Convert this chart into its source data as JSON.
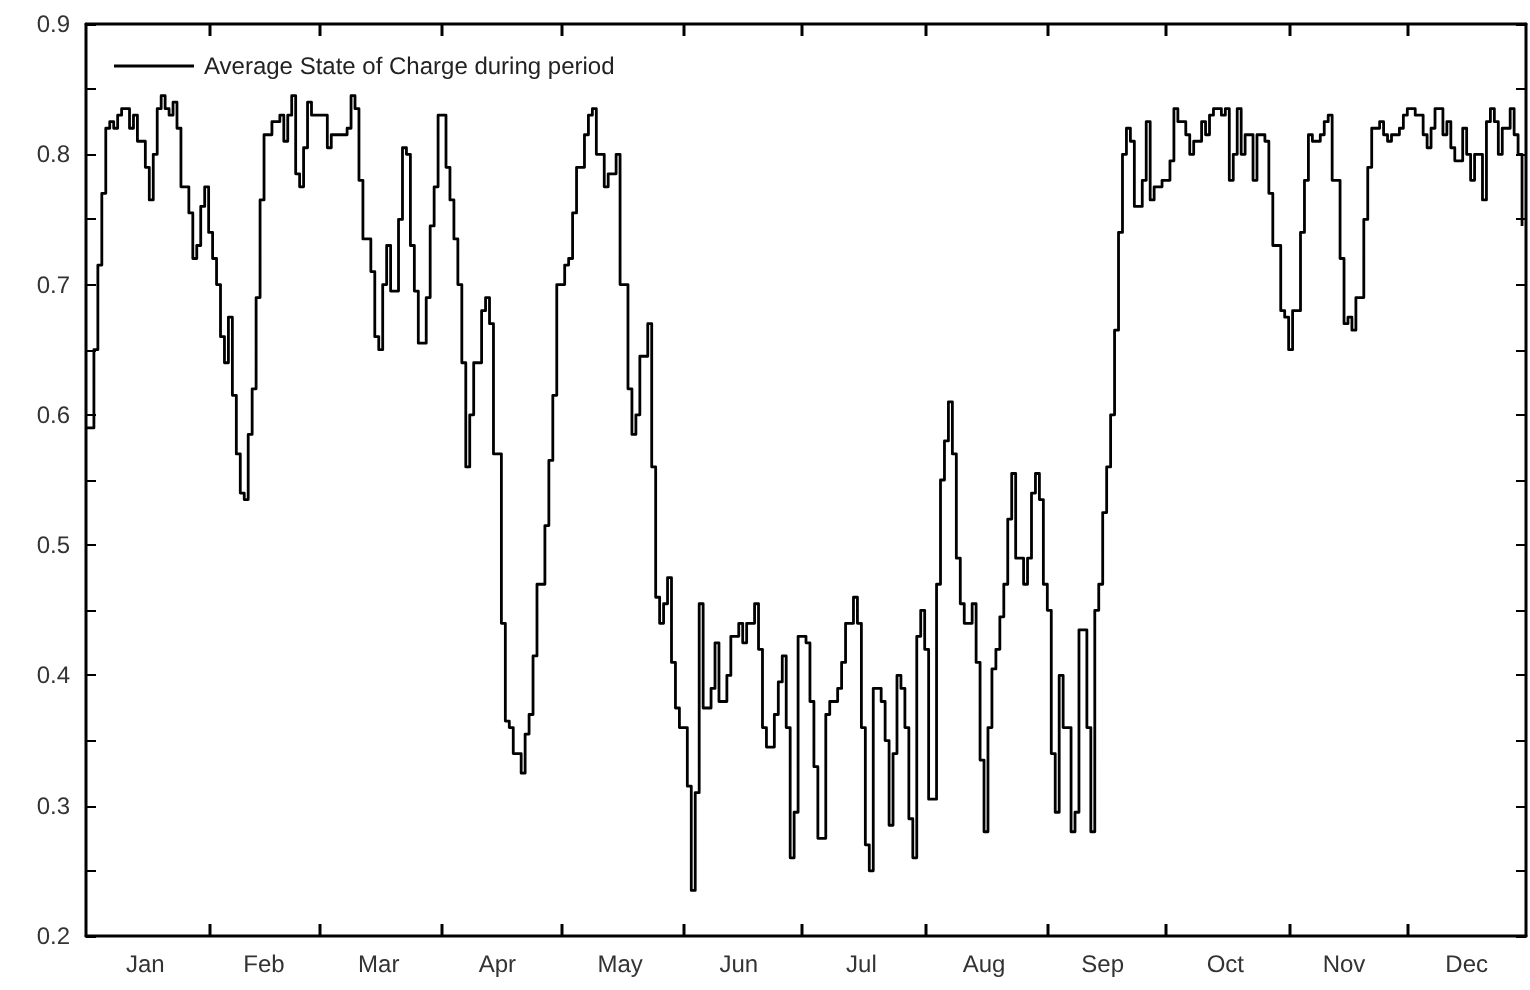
{
  "chart_data": {
    "type": "step",
    "legend": "top left",
    "marker": "none",
    "grid": false,
    "xlim": [
      "--01-01",
      "--12-31"
    ],
    "ylim": [
      0.2,
      0.9
    ],
    "xticks": [
      {
        "value": "--01-16",
        "label": "Jan"
      },
      {
        "value": "--02-01",
        "label": null
      },
      {
        "value": "--02-15",
        "label": "Feb"
      },
      {
        "value": "--03-01",
        "label": null
      },
      {
        "value": "--03-16",
        "label": "Mar"
      },
      {
        "value": "--04-01",
        "label": null
      },
      {
        "value": "--04-15",
        "label": "Apr"
      },
      {
        "value": "--05-01",
        "label": null
      },
      {
        "value": "--05-16",
        "label": "May"
      },
      {
        "value": "--06-01",
        "label": null
      },
      {
        "value": "--06-15",
        "label": "Jun"
      },
      {
        "value": "--07-01",
        "label": null
      },
      {
        "value": "--07-16",
        "label": "Jul"
      },
      {
        "value": "--08-01",
        "label": null
      },
      {
        "value": "--08-16",
        "label": "Aug"
      },
      {
        "value": "--09-01",
        "label": null
      },
      {
        "value": "--09-15",
        "label": "Sep"
      },
      {
        "value": "--10-01",
        "label": null
      },
      {
        "value": "--10-16",
        "label": "Oct"
      },
      {
        "value": "--11-01",
        "label": null
      },
      {
        "value": "--11-15",
        "label": "Nov"
      },
      {
        "value": "--12-01",
        "label": null
      },
      {
        "value": "--12-16",
        "label": "Dec"
      }
    ],
    "yticks": [
      0.2,
      {
        "value": 0.25,
        "label": null
      },
      0.3,
      {
        "value": 0.35,
        "label": null
      },
      0.4,
      {
        "value": 0.45,
        "label": null
      },
      0.5,
      {
        "value": 0.55,
        "label": null
      },
      0.6,
      {
        "value": 0.65,
        "label": null
      },
      0.7,
      {
        "value": 0.75,
        "label": null
      },
      0.8,
      {
        "value": 0.85,
        "label": null
      },
      0.9
    ],
    "series": [
      {
        "name": "Average State of Charge during period",
        "color": "#000000",
        "x": [
          "--01-01",
          "--01-03",
          "--01-04",
          "--01-05",
          "--01-06",
          "--01-07",
          "--01-08",
          "--01-09",
          "--01-10",
          "--01-12",
          "--01-13",
          "--01-14",
          "--01-15",
          "--01-16",
          "--01-17",
          "--01-18",
          "--01-19",
          "--01-20",
          "--01-21",
          "--01-22",
          "--01-23",
          "--01-24",
          "--01-25",
          "--01-27",
          "--01-28",
          "--01-29",
          "--01-30",
          "--01-31",
          "--02-01",
          "--02-02",
          "--02-03",
          "--02-04",
          "--02-05",
          "--02-06",
          "--02-07",
          "--02-08",
          "--02-09",
          "--02-10",
          "--02-11",
          "--02-12",
          "--02-13",
          "--02-14",
          "--02-15",
          "--02-17",
          "--02-19",
          "--02-20",
          "--02-21",
          "--02-22",
          "--02-23",
          "--02-24",
          "--02-25",
          "--02-26",
          "--02-27",
          "--03-03",
          "--03-04",
          "--03-08",
          "--03-09",
          "--03-10",
          "--03-11",
          "--03-12",
          "--03-14",
          "--03-15",
          "--03-16",
          "--03-17",
          "--03-18",
          "--03-19",
          "--03-21",
          "--03-22",
          "--03-23",
          "--03-24",
          "--03-25",
          "--03-26",
          "--03-28",
          "--03-29",
          "--03-30",
          "--03-31",
          "--04-02",
          "--04-03",
          "--04-04",
          "--04-05",
          "--04-06",
          "--04-07",
          "--04-08",
          "--04-09",
          "--04-10",
          "--04-11",
          "--04-12",
          "--04-13",
          "--04-14",
          "--04-16",
          "--04-17",
          "--04-18",
          "--04-19",
          "--04-21",
          "--04-22",
          "--04-23",
          "--04-24",
          "--04-25",
          "--04-27",
          "--04-28",
          "--04-29",
          "--04-30",
          "--05-02",
          "--05-03",
          "--05-04",
          "--05-05",
          "--05-07",
          "--05-08",
          "--05-09",
          "--05-10",
          "--05-12",
          "--05-13",
          "--05-15",
          "--05-16",
          "--05-18",
          "--05-19",
          "--05-20",
          "--05-21",
          "--05-23",
          "--05-24",
          "--05-25",
          "--05-26",
          "--05-27",
          "--05-28",
          "--05-29",
          "--05-30",
          "--05-31",
          "--06-02",
          "--06-03",
          "--06-04",
          "--06-05",
          "--06-06",
          "--06-08",
          "--06-09",
          "--06-10",
          "--06-12",
          "--06-13",
          "--06-15",
          "--06-16",
          "--06-17",
          "--06-19",
          "--06-20",
          "--06-21",
          "--06-22",
          "--06-24",
          "--06-25",
          "--06-26",
          "--06-27",
          "--06-28",
          "--06-29",
          "--06-30",
          "--07-02",
          "--07-03",
          "--07-04",
          "--07-05",
          "--07-07",
          "--07-08",
          "--07-10",
          "--07-11",
          "--07-12",
          "--07-14",
          "--07-15",
          "--07-16",
          "--07-17",
          "--07-18",
          "--07-19",
          "--07-21",
          "--07-22",
          "--07-23",
          "--07-24",
          "--07-25",
          "--07-26",
          "--07-27",
          "--07-28",
          "--07-29",
          "--07-30",
          "--07-31",
          "--08-01",
          "--08-02",
          "--08-04",
          "--08-05",
          "--08-06",
          "--08-07",
          "--08-08",
          "--08-09",
          "--08-10",
          "--08-11",
          "--08-13",
          "--08-14",
          "--08-15",
          "--08-16",
          "--08-17",
          "--08-18",
          "--08-19",
          "--08-20",
          "--08-21",
          "--08-22",
          "--08-23",
          "--08-24",
          "--08-26",
          "--08-27",
          "--08-28",
          "--08-29",
          "--08-30",
          "--08-31",
          "--09-01",
          "--09-02",
          "--09-03",
          "--09-04",
          "--09-05",
          "--09-07",
          "--09-08",
          "--09-09",
          "--09-11",
          "--09-12",
          "--09-13",
          "--09-14",
          "--09-15",
          "--09-16",
          "--09-17",
          "--09-18",
          "--09-19",
          "--09-20",
          "--09-21",
          "--09-22",
          "--09-23",
          "--09-25",
          "--09-26",
          "--09-27",
          "--09-28",
          "--09-30",
          "--10-02",
          "--10-03",
          "--10-04",
          "--10-06",
          "--10-07",
          "--10-08",
          "--10-10",
          "--10-11",
          "--10-12",
          "--10-13",
          "--10-15",
          "--10-16",
          "--10-17",
          "--10-18",
          "--10-19",
          "--10-20",
          "--10-21",
          "--10-23",
          "--10-24",
          "--10-26",
          "--10-27",
          "--10-28",
          "--10-30",
          "--10-31",
          "--11-01",
          "--11-02",
          "--11-04",
          "--11-05",
          "--11-06",
          "--11-07",
          "--11-09",
          "--11-10",
          "--11-11",
          "--11-12",
          "--11-14",
          "--11-15",
          "--11-16",
          "--11-17",
          "--11-18",
          "--11-19",
          "--11-20",
          "--11-21",
          "--11-22",
          "--11-24",
          "--11-25",
          "--11-26",
          "--11-27",
          "--11-29",
          "--11-30",
          "--12-01",
          "--12-03",
          "--12-05",
          "--12-06",
          "--12-07",
          "--12-08",
          "--12-10",
          "--12-11",
          "--12-12",
          "--12-13",
          "--12-15",
          "--12-16",
          "--12-17",
          "--12-18",
          "--12-20",
          "--12-21",
          "--12-22",
          "--12-23",
          "--12-24",
          "--12-25",
          "--12-27",
          "--12-28",
          "--12-29",
          "--12-30"
        ],
        "values": [
          0.59,
          0.65,
          0.715,
          0.77,
          0.82,
          0.825,
          0.82,
          0.83,
          0.835,
          0.82,
          0.83,
          0.81,
          0.81,
          0.79,
          0.765,
          0.8,
          0.835,
          0.845,
          0.835,
          0.83,
          0.84,
          0.82,
          0.775,
          0.755,
          0.72,
          0.73,
          0.76,
          0.775,
          0.74,
          0.72,
          0.7,
          0.66,
          0.64,
          0.675,
          0.615,
          0.57,
          0.54,
          0.535,
          0.585,
          0.62,
          0.69,
          0.765,
          0.815,
          0.825,
          0.83,
          0.81,
          0.83,
          0.845,
          0.785,
          0.775,
          0.805,
          0.84,
          0.83,
          0.805,
          0.815,
          0.82,
          0.845,
          0.835,
          0.78,
          0.735,
          0.71,
          0.66,
          0.65,
          0.7,
          0.73,
          0.695,
          0.75,
          0.805,
          0.8,
          0.73,
          0.695,
          0.655,
          0.69,
          0.745,
          0.775,
          0.83,
          0.79,
          0.765,
          0.735,
          0.7,
          0.64,
          0.56,
          0.6,
          0.64,
          0.64,
          0.68,
          0.69,
          0.67,
          0.57,
          0.44,
          0.365,
          0.36,
          0.34,
          0.325,
          0.355,
          0.37,
          0.415,
          0.47,
          0.515,
          0.565,
          0.615,
          0.7,
          0.715,
          0.72,
          0.755,
          0.79,
          0.815,
          0.83,
          0.835,
          0.8,
          0.775,
          0.785,
          0.8,
          0.7,
          0.62,
          0.585,
          0.6,
          0.645,
          0.67,
          0.56,
          0.46,
          0.44,
          0.455,
          0.475,
          0.41,
          0.375,
          0.36,
          0.315,
          0.235,
          0.31,
          0.455,
          0.375,
          0.39,
          0.425,
          0.38,
          0.4,
          0.43,
          0.44,
          0.425,
          0.44,
          0.455,
          0.42,
          0.36,
          0.345,
          0.37,
          0.395,
          0.415,
          0.36,
          0.26,
          0.295,
          0.43,
          0.425,
          0.38,
          0.33,
          0.275,
          0.37,
          0.38,
          0.39,
          0.41,
          0.44,
          0.46,
          0.44,
          0.36,
          0.27,
          0.25,
          0.39,
          0.38,
          0.35,
          0.285,
          0.34,
          0.4,
          0.39,
          0.36,
          0.29,
          0.26,
          0.43,
          0.45,
          0.42,
          0.305,
          0.47,
          0.55,
          0.58,
          0.61,
          0.57,
          0.49,
          0.455,
          0.44,
          0.455,
          0.41,
          0.335,
          0.28,
          0.36,
          0.405,
          0.42,
          0.445,
          0.47,
          0.52,
          0.555,
          0.49,
          0.47,
          0.49,
          0.54,
          0.555,
          0.535,
          0.47,
          0.45,
          0.34,
          0.295,
          0.4,
          0.36,
          0.28,
          0.295,
          0.435,
          0.36,
          0.28,
          0.45,
          0.47,
          0.525,
          0.56,
          0.6,
          0.665,
          0.74,
          0.8,
          0.82,
          0.81,
          0.76,
          0.78,
          0.825,
          0.765,
          0.775,
          0.78,
          0.795,
          0.835,
          0.825,
          0.815,
          0.8,
          0.81,
          0.825,
          0.815,
          0.83,
          0.835,
          0.83,
          0.835,
          0.78,
          0.8,
          0.835,
          0.8,
          0.815,
          0.78,
          0.815,
          0.81,
          0.77,
          0.73,
          0.68,
          0.675,
          0.65,
          0.68,
          0.74,
          0.78,
          0.815,
          0.81,
          0.815,
          0.825,
          0.83,
          0.78,
          0.72,
          0.67,
          0.675,
          0.665,
          0.69,
          0.69,
          0.75,
          0.79,
          0.82,
          0.825,
          0.815,
          0.81,
          0.815,
          0.82,
          0.83,
          0.835,
          0.83,
          0.815,
          0.805,
          0.82,
          0.835,
          0.815,
          0.825,
          0.805,
          0.795,
          0.82,
          0.8,
          0.78,
          0.8,
          0.765,
          0.825,
          0.835,
          0.825,
          0.8,
          0.82,
          0.835,
          0.815,
          0.8,
          0.745
        ]
      }
    ]
  }
}
